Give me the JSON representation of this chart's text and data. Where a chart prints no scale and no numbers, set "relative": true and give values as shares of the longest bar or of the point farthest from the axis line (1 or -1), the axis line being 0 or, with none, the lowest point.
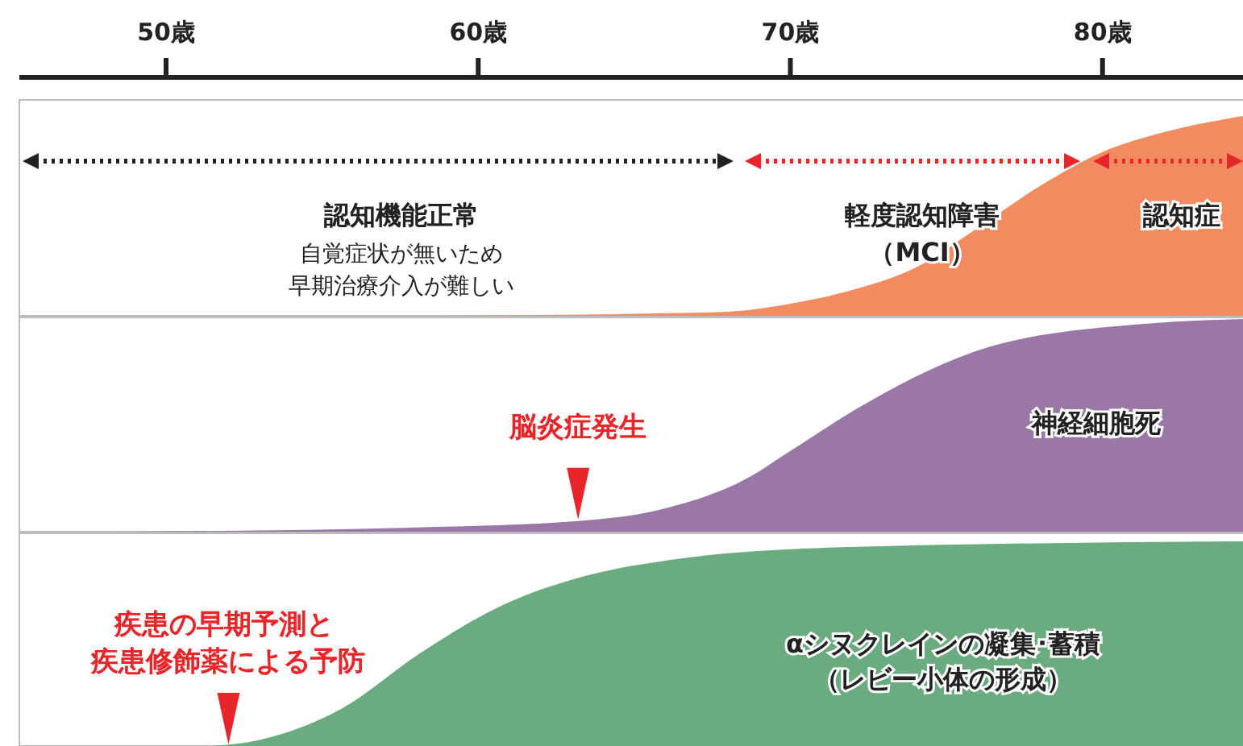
{
  "chart_data": [
    {
      "type": "area",
      "relative": true,
      "xlim": [
        45.3,
        84.5
      ],
      "xticks": [
        {
          "value": 50,
          "label": "50歳"
        },
        {
          "value": 60,
          "label": "60歳"
        },
        {
          "value": 70,
          "label": "70歳"
        },
        {
          "value": 80,
          "label": "80歳"
        }
      ],
      "tick_labels": "x",
      "x": [
        59,
        65,
        68,
        70,
        72,
        74,
        76,
        78,
        80,
        82,
        84.5
      ],
      "series": [
        {
          "color": "#f28c60",
          "values": [
            0,
            0.01,
            0.02,
            0.06,
            0.13,
            0.24,
            0.44,
            0.65,
            0.82,
            0.92,
            1
          ]
        }
      ],
      "annotations": [
        "認知機能正常",
        "自覚症状が無いため",
        "早期治療介入が難しい",
        "軽度認知障害",
        "（MCI）",
        "認知症"
      ]
    },
    {
      "type": "area",
      "relative": true,
      "xlim": [
        45.3,
        84.5
      ],
      "tick_labels": false,
      "x": [
        48.3,
        58,
        63.2,
        66,
        68.6,
        70,
        72.5,
        76.4,
        81.6,
        84.5
      ],
      "series": [
        {
          "name": "神経細胞死",
          "color": "#9a78a5",
          "values": [
            0,
            0.02,
            0.05,
            0.11,
            0.25,
            0.38,
            0.61,
            0.87,
            0.98,
            1
          ]
        }
      ],
      "annotations": [
        {
          "text": "脳炎症発生",
          "x": 63.2,
          "y": 0.05
        }
      ]
    },
    {
      "type": "area",
      "relative": true,
      "xlim": [
        45.3,
        84.5
      ],
      "tick_labels": false,
      "x": [
        51.4,
        53,
        55.6,
        58.2,
        60.8,
        63.4,
        66.2,
        71.4,
        84.5
      ],
      "series": [
        {
          "name": "αシヌクレインの凝集･蓄積（レビー小体の形成）",
          "color": "#6aab80",
          "values": [
            0,
            0.03,
            0.18,
            0.46,
            0.69,
            0.83,
            0.91,
            0.97,
            1
          ]
        }
      ],
      "annotations": [
        "疾患の早期予測と",
        {
          "text": "疾患修飾薬による予防",
          "x": 52,
          "y": 0
        }
      ]
    }
  ]
}
